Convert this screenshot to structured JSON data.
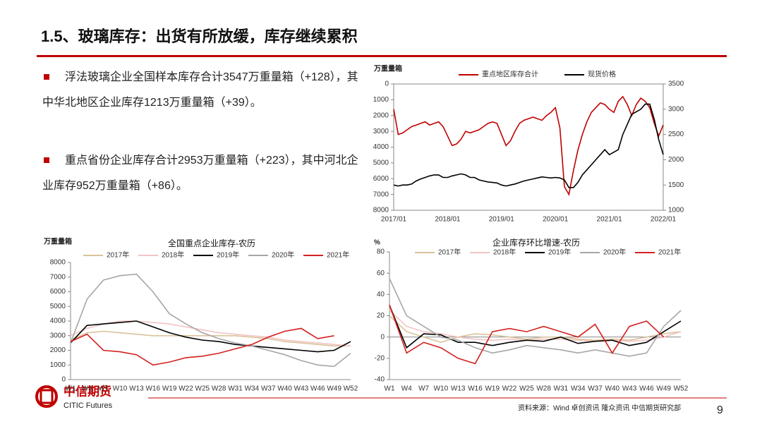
{
  "header": {
    "title": "1.5、玻璃库存：出货有所放缓，库存继续累积"
  },
  "bullets": [
    "浮法玻璃企业全国样本库存合计3547万重量箱（+128），其中华北地区企业库存1213万重量箱（+39）。",
    "重点省份企业库存合计2953万重量箱（+223），其中河北企业库存952万重量箱（+86）。"
  ],
  "chart_data": [
    {
      "type": "line",
      "y_label": "万重量箱",
      "x": [
        "2017/01",
        "2017/02",
        "2017/03",
        "2017/04",
        "2017/05",
        "2017/06",
        "2017/07",
        "2017/08",
        "2017/09",
        "2017/10",
        "2017/11",
        "2017/12",
        "2018/01",
        "2018/02",
        "2018/03",
        "2018/04",
        "2018/05",
        "2018/06",
        "2018/07",
        "2018/08",
        "2018/09",
        "2018/10",
        "2018/11",
        "2018/12",
        "2019/01",
        "2019/02",
        "2019/03",
        "2019/04",
        "2019/05",
        "2019/06",
        "2019/07",
        "2019/08",
        "2019/09",
        "2019/10",
        "2019/11",
        "2019/12",
        "2020/01",
        "2020/02",
        "2020/03",
        "2020/04",
        "2020/05",
        "2020/06",
        "2020/07",
        "2020/08",
        "2020/09",
        "2020/10",
        "2020/11",
        "2020/12",
        "2021/01",
        "2021/02",
        "2021/03",
        "2021/04",
        "2021/05",
        "2021/06",
        "2021/07",
        "2021/08",
        "2021/09",
        "2021/10",
        "2021/11",
        "2021/12",
        "2022/01"
      ],
      "xticks": [
        "2017/01",
        "2018/01",
        "2019/01",
        "2020/01",
        "2021/01",
        "2022/01"
      ],
      "series": [
        {
          "name": "重点地区库存合计",
          "color": "#c00000",
          "values": [
            1600,
            3200,
            3100,
            2900,
            2700,
            2600,
            2500,
            2400,
            2600,
            2500,
            2400,
            2700,
            3300,
            3900,
            3800,
            3500,
            3000,
            3100,
            3000,
            2900,
            2700,
            2500,
            2400,
            2500,
            3200,
            3900,
            3600,
            3000,
            2500,
            2300,
            2200,
            2100,
            2200,
            2300,
            2000,
            1800,
            1500,
            2800,
            6500,
            7000,
            5500,
            4200,
            3200,
            2400,
            1800,
            1500,
            1200,
            1300,
            1600,
            1800,
            1100,
            800,
            1300,
            2000,
            1300,
            900,
            1100,
            1500,
            2500,
            3300,
            2600
          ]
        },
        {
          "name": "现货价格",
          "color": "#000000",
          "axis": "y2",
          "values": [
            1500,
            1480,
            1500,
            1500,
            1520,
            1580,
            1620,
            1650,
            1680,
            1700,
            1700,
            1650,
            1650,
            1680,
            1700,
            1720,
            1700,
            1650,
            1650,
            1600,
            1580,
            1560,
            1550,
            1540,
            1500,
            1480,
            1500,
            1520,
            1550,
            1580,
            1600,
            1620,
            1640,
            1660,
            1650,
            1640,
            1650,
            1640,
            1600,
            1450,
            1450,
            1550,
            1700,
            1800,
            1900,
            2000,
            2100,
            2200,
            2100,
            2150,
            2200,
            2500,
            2700,
            2900,
            2950,
            3000,
            3100,
            3100,
            2800,
            2400,
            2100
          ]
        }
      ],
      "ylim": [
        8000,
        0
      ],
      "yticks": [
        0,
        1000,
        2000,
        3000,
        4000,
        5000,
        6000,
        7000,
        8000
      ],
      "y2lim": [
        1000,
        3500
      ],
      "y2ticks": [
        1000,
        1500,
        2000,
        2500,
        3000,
        3500
      ]
    },
    {
      "type": "line",
      "title": "全国重点企业库存-农历",
      "y_label": "万重量箱",
      "categories": [
        "W1",
        "W4",
        "W7",
        "W10",
        "W13",
        "W16",
        "W19",
        "W22",
        "W25",
        "W28",
        "W31",
        "W34",
        "W37",
        "W40",
        "W43",
        "W46",
        "W49",
        "W52"
      ],
      "series": [
        {
          "name": "2017年",
          "color": "#d9c39a",
          "values": [
            2700,
            3200,
            3300,
            3200,
            3100,
            3000,
            3000,
            3000,
            3000,
            3000,
            3000,
            2900,
            2800,
            2600,
            2500,
            2400,
            2300,
            2300
          ]
        },
        {
          "name": "2018年",
          "color": "#f2c4c4",
          "values": [
            3000,
            3500,
            3800,
            4000,
            4000,
            3900,
            3800,
            3600,
            3400,
            3200,
            3100,
            3000,
            2900,
            2700,
            2600,
            2500,
            2400,
            2300
          ]
        },
        {
          "name": "2019年",
          "color": "#000000",
          "values": [
            2500,
            3700,
            3800,
            3900,
            4000,
            3600,
            3200,
            2900,
            2700,
            2600,
            2400,
            2300,
            2200,
            2100,
            2000,
            1900,
            2000,
            2600
          ]
        },
        {
          "name": "2020年",
          "color": "#a6a6a6",
          "values": [
            2500,
            5500,
            6800,
            7100,
            7200,
            6000,
            4500,
            3800,
            3200,
            2800,
            2500,
            2300,
            2000,
            1700,
            1300,
            1000,
            900,
            1800
          ]
        },
        {
          "name": "2021年",
          "color": "#d42020",
          "values": [
            2600,
            3100,
            2000,
            1900,
            1700,
            1000,
            1200,
            1500,
            1600,
            1800,
            2100,
            2400,
            2900,
            3300,
            3500,
            2800,
            3000,
            null
          ]
        }
      ],
      "ylim": [
        0,
        8000
      ],
      "yticks": [
        0,
        1000,
        2000,
        3000,
        4000,
        5000,
        6000,
        7000,
        8000
      ]
    },
    {
      "type": "line",
      "title": "企业库存环比增速-农历",
      "y_label": "%",
      "categories": [
        "W1",
        "W4",
        "W7",
        "W10",
        "W13",
        "W16",
        "W19",
        "W22",
        "W25",
        "W28",
        "W31",
        "W34",
        "W37",
        "W40",
        "W43",
        "W46",
        "W49",
        "W52"
      ],
      "series": [
        {
          "name": "2017年",
          "color": "#d9c39a",
          "values": [
            20,
            5,
            0,
            -5,
            0,
            3,
            2,
            0,
            -2,
            0,
            0,
            -2,
            -3,
            -2,
            -3,
            0,
            3,
            5
          ]
        },
        {
          "name": "2018年",
          "color": "#f2c4c4",
          "values": [
            25,
            10,
            5,
            3,
            0,
            -2,
            -3,
            -2,
            -3,
            -2,
            -2,
            -3,
            -4,
            -3,
            -4,
            -3,
            0,
            5
          ]
        },
        {
          "name": "2019年",
          "color": "#000000",
          "values": [
            30,
            -10,
            3,
            2,
            -5,
            -5,
            -8,
            -5,
            -3,
            -4,
            0,
            -6,
            -4,
            -3,
            -8,
            -5,
            5,
            15
          ]
        },
        {
          "name": "2020年",
          "color": "#a6a6a6",
          "values": [
            55,
            20,
            10,
            0,
            -3,
            -10,
            -15,
            -12,
            -8,
            -10,
            -12,
            -15,
            -12,
            -15,
            -18,
            -15,
            10,
            25
          ]
        },
        {
          "name": "2021年",
          "color": "#d42020",
          "values": [
            30,
            -15,
            -5,
            -10,
            -20,
            -25,
            5,
            8,
            5,
            10,
            5,
            0,
            12,
            -15,
            10,
            15,
            0,
            null
          ]
        }
      ],
      "ylim": [
        -40,
        80
      ],
      "yticks": [
        -40,
        -20,
        0,
        20,
        40,
        60,
        80
      ]
    }
  ],
  "footer": {
    "logo_name": "中信期货",
    "logo_name_en": "CITIC Futures",
    "source": "资料来源：Wind 卓创资讯 隆众资讯 中信期货研究部",
    "page": "9"
  }
}
